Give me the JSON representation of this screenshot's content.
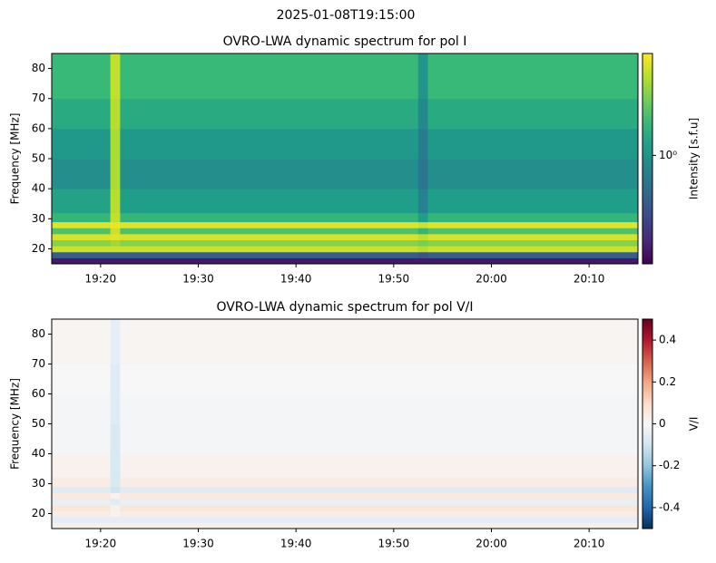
{
  "title": "2025-01-08T19:15:00",
  "chart_data": [
    {
      "type": "heatmap",
      "title": "OVRO-LWA dynamic spectrum for pol I",
      "ylabel": "Frequency [MHz]",
      "colorbar_label": "Intensity [s.f.u]",
      "colormap": "viridis",
      "color_scale": "log",
      "clim": [
        0.3,
        3.1
      ],
      "cticks": [
        {
          "value": 1,
          "label": "10⁰"
        }
      ],
      "xlim": [
        15,
        75
      ],
      "xticks": [
        {
          "value": 20,
          "label": "19:20"
        },
        {
          "value": 30,
          "label": "19:30"
        },
        {
          "value": 40,
          "label": "19:40"
        },
        {
          "value": 50,
          "label": "19:50"
        },
        {
          "value": 60,
          "label": "20:00"
        },
        {
          "value": 70,
          "label": "20:10"
        }
      ],
      "ylim": [
        15,
        85
      ],
      "yticks": [
        20,
        30,
        40,
        50,
        60,
        70,
        80
      ],
      "xbins": [
        15,
        21,
        22,
        52.5,
        53.5,
        75
      ],
      "ybins": [
        15,
        17,
        19,
        21,
        23,
        25,
        27,
        29,
        32,
        40,
        50,
        60,
        70,
        85
      ],
      "z": [
        [
          0.35,
          0.35,
          0.35,
          0.35,
          0.35
        ],
        [
          0.6,
          0.6,
          0.6,
          0.55,
          0.6
        ],
        [
          2.6,
          2.6,
          2.6,
          2.4,
          2.6
        ],
        [
          2.0,
          2.2,
          2.0,
          1.9,
          2.0
        ],
        [
          2.7,
          2.8,
          2.7,
          2.5,
          2.7
        ],
        [
          1.6,
          2.6,
          1.6,
          1.4,
          1.6
        ],
        [
          2.8,
          2.9,
          2.8,
          2.6,
          2.8
        ],
        [
          1.4,
          2.5,
          1.4,
          1.1,
          1.4
        ],
        [
          1.15,
          2.4,
          1.1,
          0.85,
          1.1
        ],
        [
          0.95,
          2.3,
          0.95,
          0.75,
          0.95
        ],
        [
          1.05,
          2.3,
          1.05,
          0.8,
          1.05
        ],
        [
          1.25,
          2.4,
          1.25,
          0.9,
          1.25
        ],
        [
          1.45,
          2.5,
          1.45,
          1.0,
          1.45
        ]
      ]
    },
    {
      "type": "heatmap",
      "title": "OVRO-LWA dynamic spectrum for pol V/I",
      "ylabel": "Frequency [MHz]",
      "colorbar_label": "V/I",
      "colormap": "RdBu_r",
      "color_scale": "linear",
      "clim": [
        -0.5,
        0.5
      ],
      "cticks": [
        -0.4,
        -0.2,
        0.0,
        0.2,
        0.4
      ],
      "xlim": [
        15,
        75
      ],
      "xticks": [
        {
          "value": 20,
          "label": "19:20"
        },
        {
          "value": 30,
          "label": "19:30"
        },
        {
          "value": 40,
          "label": "19:40"
        },
        {
          "value": 50,
          "label": "19:50"
        },
        {
          "value": 60,
          "label": "20:00"
        },
        {
          "value": 70,
          "label": "20:10"
        }
      ],
      "ylim": [
        15,
        85
      ],
      "yticks": [
        20,
        30,
        40,
        50,
        60,
        70,
        80
      ],
      "xbins": [
        15,
        21,
        22,
        52.5,
        53.5,
        75
      ],
      "ybins": [
        15,
        17,
        19,
        21,
        23,
        25,
        27,
        29,
        32,
        40,
        50,
        60,
        70,
        85
      ],
      "z": [
        [
          0.03,
          0.03,
          0.03,
          0.03,
          0.03
        ],
        [
          -0.05,
          -0.05,
          -0.05,
          -0.05,
          -0.05
        ],
        [
          0.04,
          0.02,
          0.04,
          0.04,
          0.04
        ],
        [
          0.06,
          0.03,
          0.06,
          0.06,
          0.06
        ],
        [
          -0.04,
          -0.06,
          -0.04,
          -0.04,
          -0.04
        ],
        [
          0.05,
          0.02,
          0.05,
          0.05,
          0.05
        ],
        [
          -0.06,
          -0.1,
          -0.06,
          -0.06,
          -0.06
        ],
        [
          0.04,
          -0.08,
          0.04,
          0.04,
          0.04
        ],
        [
          0.02,
          -0.08,
          0.02,
          0.02,
          0.02
        ],
        [
          -0.01,
          -0.08,
          -0.01,
          -0.01,
          -0.01
        ],
        [
          -0.01,
          -0.06,
          -0.01,
          -0.01,
          -0.01
        ],
        [
          0.0,
          -0.06,
          0.0,
          0.0,
          0.0
        ],
        [
          0.01,
          -0.05,
          0.01,
          0.01,
          0.01
        ]
      ]
    }
  ]
}
